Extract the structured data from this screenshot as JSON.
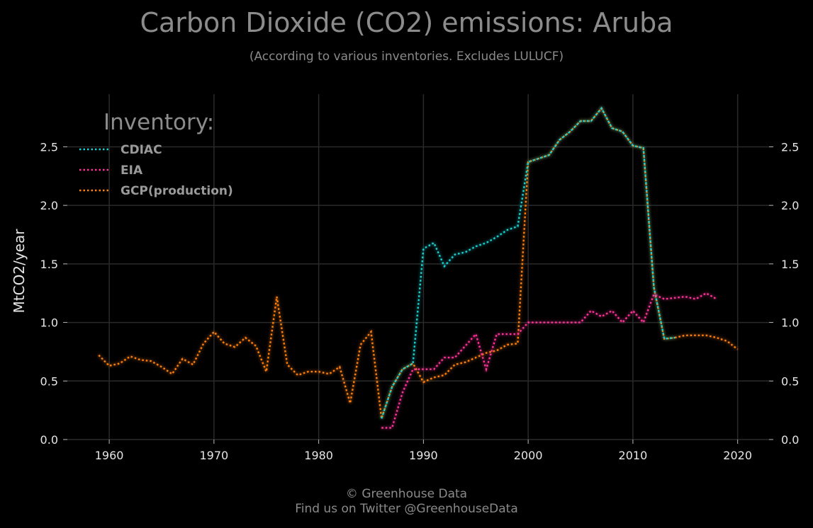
{
  "header": {
    "title": "Carbon Dioxide (CO2) emissions: Aruba",
    "subtitle": "(According to various inventories. Excludes LULUCF)"
  },
  "footer": {
    "line1": "© Greenhouse Data",
    "line2": "Find us on Twitter @GreenhouseData"
  },
  "chart_data": {
    "type": "line",
    "title": "Carbon Dioxide (CO2) emissions: Aruba",
    "subtitle": "(According to various inventories. Excludes LULUCF)",
    "xlabel": "",
    "ylabel": "MtCO2/year",
    "xlim": [
      1956,
      2023
    ],
    "ylim": [
      0,
      2.95
    ],
    "xticks": [
      1960,
      1970,
      1980,
      1990,
      2000,
      2010,
      2020
    ],
    "yticks": [
      0.0,
      0.5,
      1.0,
      1.5,
      2.0,
      2.5
    ],
    "ytick_labels": [
      "0.0",
      "0.5",
      "1.0",
      "1.5",
      "2.0",
      "2.5"
    ],
    "grid": true,
    "legend": {
      "title": "Inventory:",
      "placement": "top-left"
    },
    "series": [
      {
        "name": "CDIAC",
        "color": "#1ad1d1",
        "x": [
          1986,
          1987,
          1988,
          1989,
          1990,
          1991,
          1992,
          1993,
          1994,
          1995,
          1996,
          1997,
          1998,
          1999,
          2000,
          2001,
          2002,
          2003,
          2004,
          2005,
          2006,
          2007,
          2008,
          2009,
          2010,
          2011,
          2012,
          2013,
          2014
        ],
        "y": [
          0.18,
          0.45,
          0.6,
          0.65,
          1.63,
          1.68,
          1.48,
          1.58,
          1.6,
          1.65,
          1.68,
          1.73,
          1.79,
          1.82,
          2.37,
          2.4,
          2.43,
          2.56,
          2.63,
          2.72,
          2.72,
          2.83,
          2.66,
          2.63,
          2.51,
          2.49,
          1.3,
          0.86,
          0.87
        ]
      },
      {
        "name": "EIA",
        "color": "#ff3399",
        "x": [
          1986,
          1987,
          1988,
          1989,
          1990,
          1991,
          1992,
          1993,
          1994,
          1995,
          1996,
          1997,
          1998,
          1999,
          2000,
          2001,
          2002,
          2003,
          2004,
          2005,
          2006,
          2007,
          2008,
          2009,
          2010,
          2011,
          2012,
          2013,
          2014,
          2015,
          2016,
          2017,
          2018
        ],
        "y": [
          0.1,
          0.1,
          0.4,
          0.6,
          0.6,
          0.6,
          0.7,
          0.7,
          0.8,
          0.9,
          0.6,
          0.9,
          0.9,
          0.9,
          1.0,
          1.0,
          1.0,
          1.0,
          1.0,
          1.0,
          1.1,
          1.05,
          1.1,
          1.0,
          1.1,
          1.0,
          1.24,
          1.2,
          1.21,
          1.22,
          1.2,
          1.25,
          1.2
        ]
      },
      {
        "name": "GCP(production)",
        "color": "#ff7f0e",
        "x": [
          1959,
          1960,
          1961,
          1962,
          1963,
          1964,
          1965,
          1966,
          1967,
          1968,
          1969,
          1970,
          1971,
          1972,
          1973,
          1974,
          1975,
          1976,
          1977,
          1978,
          1979,
          1980,
          1981,
          1982,
          1983,
          1984,
          1985,
          1986,
          1987,
          1988,
          1989,
          1990,
          1991,
          1992,
          1993,
          1994,
          1995,
          1996,
          1997,
          1998,
          1999,
          2000,
          2001,
          2002,
          2003,
          2004,
          2005,
          2006,
          2007,
          2008,
          2009,
          2010,
          2011,
          2012,
          2013,
          2014,
          2015,
          2016,
          2017,
          2018,
          2019,
          2020
        ],
        "y": [
          0.72,
          0.63,
          0.65,
          0.71,
          0.68,
          0.67,
          0.62,
          0.56,
          0.69,
          0.64,
          0.82,
          0.92,
          0.82,
          0.79,
          0.87,
          0.8,
          0.58,
          1.22,
          0.64,
          0.55,
          0.58,
          0.58,
          0.56,
          0.62,
          0.31,
          0.81,
          0.92,
          0.18,
          0.45,
          0.6,
          0.65,
          0.49,
          0.53,
          0.55,
          0.64,
          0.66,
          0.7,
          0.74,
          0.76,
          0.81,
          0.82,
          2.37,
          2.4,
          2.43,
          2.56,
          2.63,
          2.72,
          2.72,
          2.83,
          2.66,
          2.63,
          2.51,
          2.49,
          1.3,
          0.86,
          0.87,
          0.89,
          0.89,
          0.89,
          0.87,
          0.84,
          0.77
        ]
      }
    ]
  }
}
